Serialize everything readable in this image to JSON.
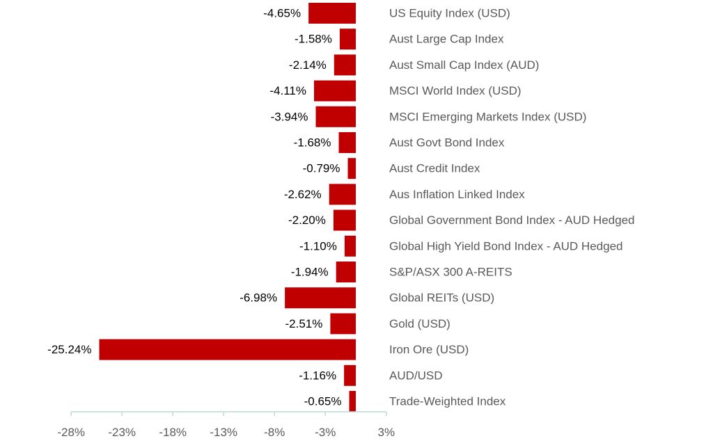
{
  "chart_data": {
    "type": "bar",
    "orientation": "horizontal",
    "categories": [
      "US Equity Index (USD)",
      "Aust Large Cap Index",
      "Aust Small Cap Index (AUD)",
      "MSCI World Index (USD)",
      "MSCI Emerging Markets Index (USD)",
      "Aust Govt Bond Index",
      "Aust Credit Index",
      "Aus Inflation Linked Index",
      "Global Government Bond Index - AUD Hedged",
      "Global High Yield Bond Index - AUD Hedged",
      "S&P/ASX 300 A-REITS",
      "Global REITs (USD)",
      "Gold (USD)",
      "Iron Ore (USD)",
      "AUD/USD",
      "Trade-Weighted Index"
    ],
    "values": [
      -4.65,
      -1.58,
      -2.14,
      -4.11,
      -3.94,
      -1.68,
      -0.79,
      -2.62,
      -2.2,
      -1.1,
      -1.94,
      -6.98,
      -2.51,
      -25.24,
      -1.16,
      -0.65
    ],
    "value_labels": [
      "-4.65%",
      "-1.58%",
      "-2.14%",
      "-4.11%",
      "-3.94%",
      "-1.68%",
      "-0.79%",
      "-2.62%",
      "-2.20%",
      "-1.10%",
      "-1.94%",
      "-6.98%",
      "-2.51%",
      "-25.24%",
      "-1.16%",
      "-0.65%"
    ],
    "x_ticks": [
      -28,
      -23,
      -18,
      -13,
      -8,
      -3,
      3
    ],
    "x_tick_labels": [
      "-28%",
      "-23%",
      "-18%",
      "-13%",
      "-8%",
      "-3%",
      "3%"
    ],
    "xlim": [
      -28,
      3
    ],
    "bar_color": "#C00000",
    "axis_color": "#BFD8D8",
    "grid": false,
    "legend": "none",
    "title": "",
    "xlabel": "",
    "ylabel": ""
  }
}
